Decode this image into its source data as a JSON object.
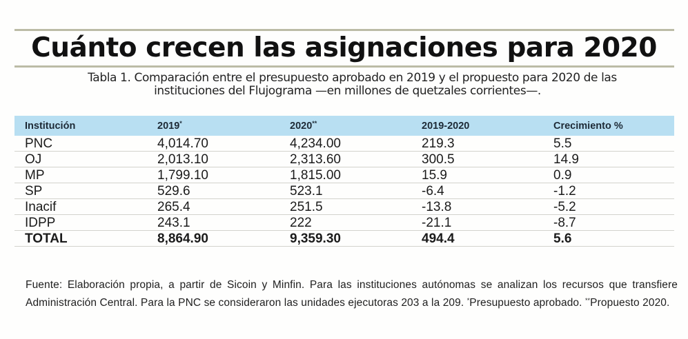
{
  "title": "Cuánto crecen las asignaciones para 2020",
  "subtitle": {
    "line1": "Tabla 1. Comparación entre el presupuesto aprobado en 2019 y el propuesto para 2020 de las",
    "line2": "instituciones del Flujograma —en millones de quetzales corrientes—."
  },
  "colors": {
    "header_bg": "#b8dff2",
    "rule": "#bcbca6",
    "row_divider": "#d2d2cc"
  },
  "table": {
    "headers": [
      {
        "label": "Institución",
        "mark": ""
      },
      {
        "label": "2019",
        "mark": "*"
      },
      {
        "label": "2020",
        "mark": "**"
      },
      {
        "label": "2019-2020",
        "mark": ""
      },
      {
        "label": "Crecimiento %",
        "mark": ""
      }
    ],
    "rows": [
      [
        "PNC",
        "4,014.70",
        "4,234.00",
        "219.3",
        "5.5"
      ],
      [
        "OJ",
        "2,013.10",
        "2,313.60",
        "300.5",
        "14.9"
      ],
      [
        "MP",
        "1,799.10",
        "1,815.00",
        "15.9",
        "0.9"
      ],
      [
        "SP",
        "529.6",
        "523.1",
        "-6.4",
        "-1.2"
      ],
      [
        "Inacif",
        "265.4",
        "251.5",
        "-13.8",
        "-5.2"
      ],
      [
        "IDPP",
        "243.1",
        "222",
        "-21.1",
        "-8.7"
      ]
    ],
    "total": [
      "TOTAL",
      "8,864.90",
      "9,359.30",
      "494.4",
      "5.6"
    ]
  },
  "footnote": {
    "text": "Fuente: Elaboración propia, a partir de Sicoin y Minfin. Para las instituciones autónomas se analizan los recursos que transfiere Administración Central. Para la PNC se consideraron las unidades ejecutoras 203 a la 209. ",
    "mark1": "*",
    "note1": "Presupuesto aprobado. ",
    "mark2": "**",
    "note2": "Propuesto 2020."
  }
}
